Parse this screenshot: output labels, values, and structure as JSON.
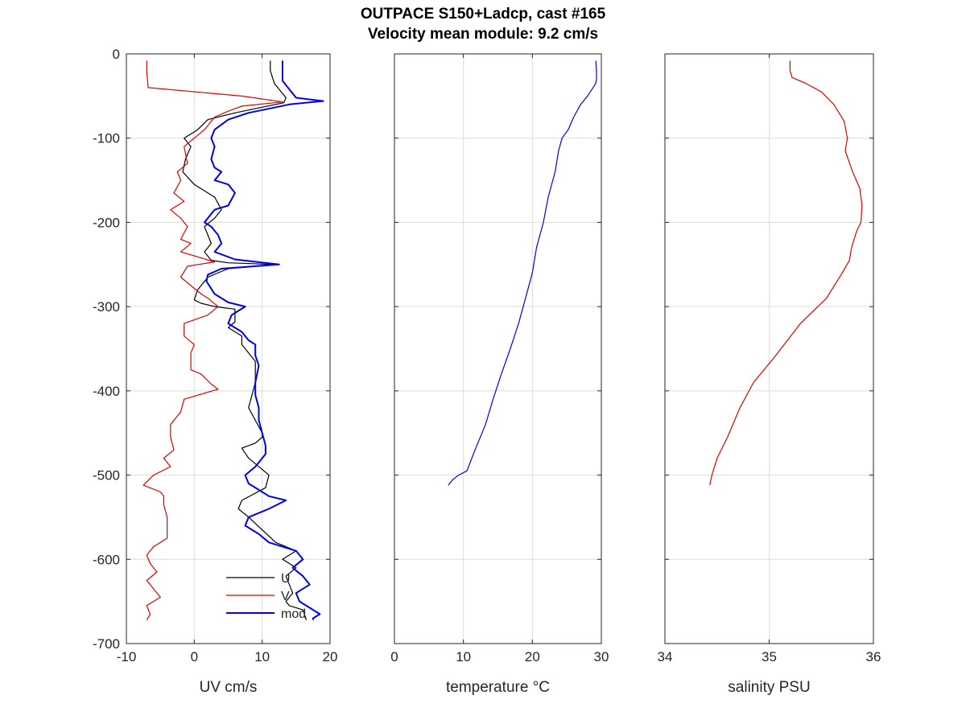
{
  "title_line1": "OUTPACE S150+Ladcp, cast #165",
  "title_line2": "Velocity mean module:  9.2 cm/s",
  "chart_data": [
    {
      "type": "line",
      "xlabel": "UV cm/s",
      "ylabel": "",
      "xlim": [
        -10,
        20
      ],
      "ylim": [
        -700,
        0
      ],
      "xticks": [
        -10,
        0,
        10,
        20
      ],
      "yticks": [
        0,
        -100,
        -200,
        -300,
        -400,
        -500,
        -600,
        -700
      ],
      "grid": true,
      "legend": {
        "placement": "bottom-right",
        "entries": [
          "U",
          "V",
          "mod"
        ]
      },
      "series": [
        {
          "name": "U",
          "color": "#000000",
          "x": [
            11.2,
            11.2,
            11.8,
            13.5,
            13.2,
            6,
            2,
            0.5,
            -1.5,
            -0.5,
            -1.3,
            -1.7,
            0,
            3,
            4,
            3,
            1.5,
            2,
            2.5,
            1.5,
            2.5,
            5,
            12,
            5,
            2,
            0.5,
            0,
            1,
            3,
            6,
            6,
            5,
            7,
            7,
            8,
            9,
            9,
            9,
            8.5,
            8,
            9,
            10,
            10,
            9,
            7,
            8,
            9.5,
            11,
            10.5,
            7,
            6.5,
            8,
            10,
            12,
            15,
            13,
            15,
            13.5,
            14,
            14.5,
            13.5,
            14,
            16,
            16.5
          ],
          "y": [
            -8,
            -20,
            -35,
            -52,
            -58,
            -70,
            -78,
            -90,
            -100,
            -110,
            -125,
            -140,
            -155,
            -170,
            -185,
            -195,
            -205,
            -215,
            -225,
            -235,
            -245,
            -248,
            -250,
            -255,
            -265,
            -280,
            -292,
            -296,
            -300,
            -303,
            -318,
            -325,
            -335,
            -345,
            -355,
            -365,
            -375,
            -390,
            -405,
            -420,
            -435,
            -450,
            -455,
            -462,
            -468,
            -480,
            -490,
            -500,
            -515,
            -530,
            -540,
            -550,
            -565,
            -580,
            -590,
            -600,
            -610,
            -620,
            -630,
            -640,
            -650,
            -655,
            -660,
            -672
          ]
        },
        {
          "name": "V",
          "color": "#e00000",
          "x": [
            -7.0,
            -7.0,
            -6.8,
            7,
            13,
            7,
            5,
            3,
            1.5,
            0,
            -1.5,
            -1,
            -2.5,
            -2,
            -3,
            -1.5,
            -3.5,
            -2,
            -1,
            -2,
            -0.5,
            -2,
            3,
            -1,
            -2,
            -0.5,
            1,
            2,
            3.5,
            2,
            -1.5,
            -1.5,
            0,
            -0.5,
            -0.5,
            1,
            2.5,
            3.5,
            -1.5,
            -2,
            -3.5,
            -3.5,
            -3,
            -4.5,
            -3.5,
            -6,
            -7.5,
            -5,
            -4.5,
            -4.5,
            -4,
            -4,
            -6,
            -7,
            -6.5,
            -5.5,
            -7,
            -6,
            -5,
            -7,
            -6.5,
            -7
          ],
          "y": [
            -8,
            -20,
            -40,
            -50,
            -57,
            -62,
            -68,
            -75,
            -90,
            -100,
            -110,
            -130,
            -140,
            -150,
            -165,
            -175,
            -185,
            -195,
            -205,
            -220,
            -225,
            -235,
            -247,
            -252,
            -265,
            -275,
            -285,
            -290,
            -300,
            -310,
            -320,
            -335,
            -345,
            -355,
            -375,
            -380,
            -392,
            -398,
            -410,
            -425,
            -440,
            -455,
            -470,
            -480,
            -490,
            -500,
            -512,
            -520,
            -525,
            -535,
            -550,
            -575,
            -585,
            -595,
            -605,
            -615,
            -625,
            -635,
            -645,
            -655,
            -665,
            -672
          ]
        },
        {
          "name": "mod",
          "color": "#0000ee",
          "x": [
            13,
            13,
            13,
            15,
            19,
            14,
            8,
            5,
            3,
            2.5,
            3,
            2.5,
            3,
            4,
            3,
            5,
            6,
            5,
            3,
            1.5,
            2.5,
            3.5,
            4,
            3,
            6,
            12.5,
            4,
            2,
            1.8,
            3,
            5,
            7.5,
            5.5,
            5,
            7,
            8,
            9,
            9,
            9.5,
            9,
            9,
            9.5,
            9.5,
            10,
            10.5,
            10.5,
            10,
            9,
            7.5,
            8,
            10,
            11,
            13.5,
            11,
            8,
            7.5,
            9.5,
            11,
            13,
            15,
            16,
            14.5,
            16,
            17,
            15,
            15.5,
            16.5,
            17.5,
            18.5,
            17.5,
            17.5
          ],
          "y": [
            -8,
            -20,
            -32,
            -52,
            -56,
            -60,
            -70,
            -78,
            -90,
            -100,
            -110,
            -125,
            -135,
            -140,
            -150,
            -155,
            -165,
            -180,
            -185,
            -200,
            -205,
            -215,
            -225,
            -235,
            -244,
            -250,
            -255,
            -262,
            -270,
            -285,
            -295,
            -300,
            -310,
            -320,
            -330,
            -340,
            -345,
            -358,
            -370,
            -390,
            -405,
            -420,
            -435,
            -450,
            -465,
            -475,
            -480,
            -490,
            -500,
            -510,
            -520,
            -525,
            -530,
            -540,
            -550,
            -560,
            -570,
            -580,
            -585,
            -590,
            -600,
            -610,
            -620,
            -630,
            -640,
            -650,
            -655,
            -660,
            -665,
            -670,
            -672
          ]
        }
      ]
    },
    {
      "type": "line",
      "xlabel": "temperature °C",
      "xlim": [
        0,
        30
      ],
      "ylim": [
        -700,
        0
      ],
      "xticks": [
        0,
        10,
        20,
        30
      ],
      "grid": true,
      "series": [
        {
          "color": "#0000ee",
          "x": [
            29.2,
            29.3,
            29.3,
            29.2,
            28.8,
            28,
            27,
            26,
            25.2,
            24.3,
            23.8,
            23.3,
            22.3,
            21.6,
            20.6,
            20,
            19,
            18,
            16.8,
            15.5,
            14.3,
            13.2,
            11.7,
            10.5,
            9.3,
            8.5,
            7.8
          ],
          "y": [
            -8,
            -20,
            -30,
            -35,
            -40,
            -50,
            -60,
            -75,
            -90,
            -100,
            -115,
            -140,
            -170,
            -200,
            -230,
            -260,
            -290,
            -320,
            -350,
            -380,
            -410,
            -440,
            -470,
            -495,
            -500,
            -505,
            -512
          ]
        }
      ]
    },
    {
      "type": "line",
      "xlabel": "salinity PSU",
      "xlim": [
        34,
        36
      ],
      "ylim": [
        -700,
        0
      ],
      "xticks": [
        34,
        35,
        36
      ],
      "grid": true,
      "series": [
        {
          "color": "#e00000",
          "x": [
            35.2,
            35.2,
            35.22,
            35.35,
            35.5,
            35.62,
            35.72,
            35.75,
            35.73,
            35.8,
            35.87,
            35.89,
            35.88,
            35.84,
            35.79,
            35.77,
            35.7,
            35.55,
            35.3,
            35.05,
            34.85,
            34.72,
            34.6,
            34.5,
            34.45,
            34.43
          ],
          "y": [
            -8,
            -20,
            -28,
            -35,
            -45,
            -60,
            -80,
            -100,
            -115,
            -140,
            -160,
            -180,
            -200,
            -210,
            -230,
            -245,
            -260,
            -290,
            -320,
            -360,
            -390,
            -420,
            -455,
            -480,
            -500,
            -512
          ]
        }
      ]
    }
  ]
}
